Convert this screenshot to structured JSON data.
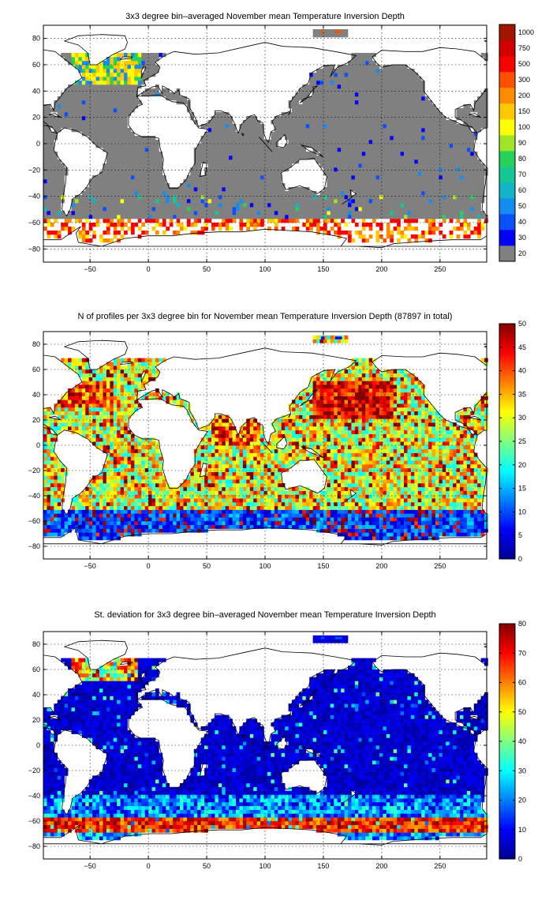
{
  "chart_data": [
    {
      "id": "mean",
      "type": "heatmap",
      "title": "3x3 degree bin–averaged November mean Temperature Inversion Depth",
      "xlim": [
        -90,
        290
      ],
      "ylim": [
        -90,
        90
      ],
      "xticks": [
        -50,
        0,
        50,
        100,
        150,
        200,
        250
      ],
      "yticks": [
        -80,
        -60,
        -40,
        -20,
        0,
        20,
        40,
        60,
        80
      ],
      "grid": true,
      "colorbar": {
        "scale": "categorical",
        "labels": [
          "20",
          "30",
          "40",
          "50",
          "60",
          "70",
          "80",
          "90",
          "100",
          "150",
          "200",
          "300",
          "500",
          "750",
          "1000"
        ],
        "colors": [
          "#808080",
          "#0000ff",
          "#0a50ff",
          "#148cf0",
          "#14b4c8",
          "#14c896",
          "#28d25a",
          "#a0e628",
          "#ffff00",
          "#ffc800",
          "#ff8c00",
          "#ff5000",
          "#ff0000",
          "#d20000",
          "#a01400"
        ]
      },
      "pattern": "mostly_shallow",
      "seed": 7
    },
    {
      "id": "count",
      "type": "heatmap",
      "title": "N of profiles per 3x3 degree bin for November mean Temperature Inversion Depth  (87897 in total)",
      "xlim": [
        -90,
        290
      ],
      "ylim": [
        -90,
        90
      ],
      "xticks": [
        -50,
        0,
        50,
        100,
        150,
        200,
        250
      ],
      "yticks": [
        -80,
        -60,
        -40,
        -20,
        0,
        20,
        40,
        60,
        80
      ],
      "grid": true,
      "colorbar": {
        "scale": "linear",
        "range": [
          0,
          50
        ],
        "ticks": [
          0,
          5,
          10,
          15,
          20,
          25,
          30,
          35,
          40,
          45,
          50
        ]
      },
      "pattern": "counts",
      "seed": 23
    },
    {
      "id": "stdev",
      "type": "heatmap",
      "title": "St. deviation for 3x3 degree bin–averaged November mean Temperature Inversion Depth",
      "xlim": [
        -90,
        290
      ],
      "ylim": [
        -90,
        90
      ],
      "xticks": [
        -50,
        0,
        50,
        100,
        150,
        200,
        250
      ],
      "yticks": [
        -80,
        -60,
        -40,
        -20,
        0,
        20,
        40,
        60,
        80
      ],
      "grid": true,
      "colorbar": {
        "scale": "linear",
        "range": [
          0,
          80
        ],
        "ticks": [
          0,
          10,
          20,
          30,
          40,
          50,
          60,
          70,
          80
        ]
      },
      "pattern": "stdev",
      "seed": 41
    }
  ]
}
